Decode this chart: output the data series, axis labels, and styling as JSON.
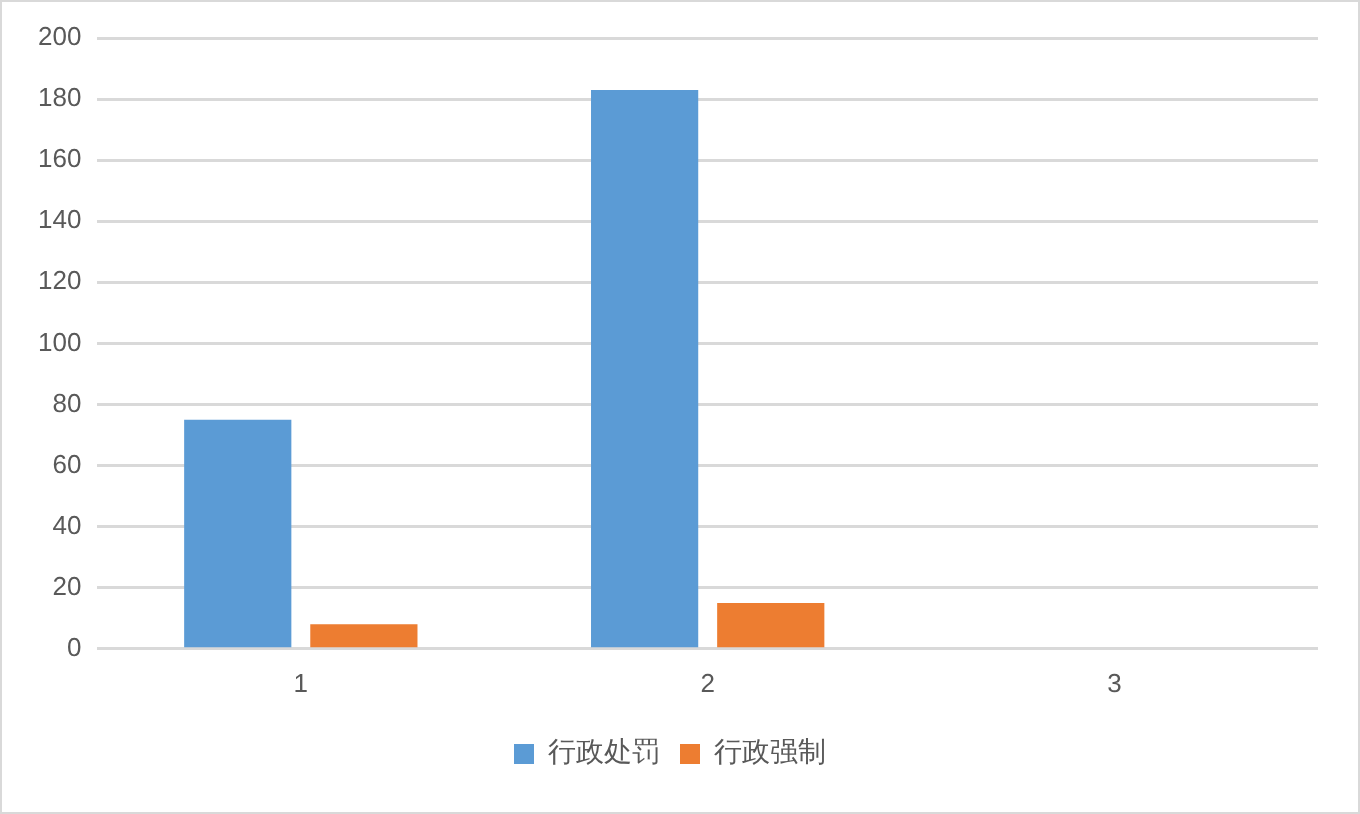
{
  "chart_data": {
    "type": "bar",
    "categories": [
      "1",
      "2",
      "3"
    ],
    "series": [
      {
        "name": "行政处罚",
        "color": "#5b9bd5",
        "values": [
          75,
          183,
          0
        ]
      },
      {
        "name": "行政强制",
        "color": "#ed7d31",
        "values": [
          8,
          15,
          0
        ]
      }
    ],
    "ylim": [
      0,
      200
    ],
    "yticks": [
      0,
      20,
      40,
      60,
      80,
      100,
      120,
      140,
      160,
      180,
      200
    ],
    "grid": "y",
    "legend": "bottom"
  }
}
